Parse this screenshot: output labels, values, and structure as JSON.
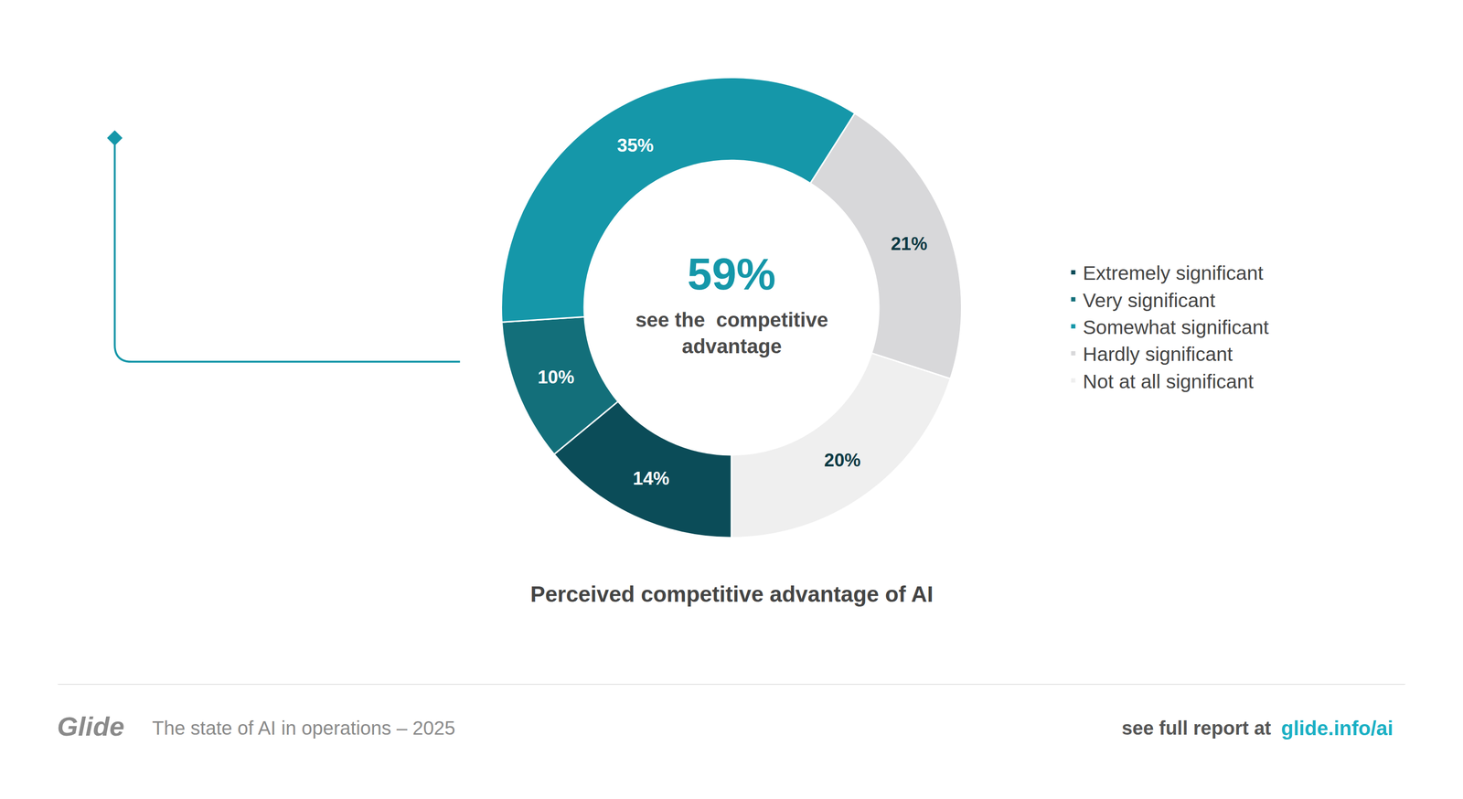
{
  "chart_data": {
    "type": "pie",
    "title": "Perceived competitive advantage of AI",
    "categories": [
      "Extremely significant",
      "Very significant",
      "Somewhat significant",
      "Hardly significant",
      "Not at all significant"
    ],
    "values": [
      14,
      10,
      35,
      21,
      20
    ],
    "value_labels": [
      "14%",
      "10%",
      "35%",
      "21%",
      "20%"
    ],
    "colors": [
      "#0b4c58",
      "#136f7a",
      "#1597a9",
      "#d8d8da",
      "#efefef"
    ],
    "data_labels": true,
    "legend": "right",
    "center": {
      "value_label": "59%",
      "text": [
        "see the  competitive",
        "advantage"
      ]
    },
    "source": {
      "brand": "Glide",
      "text": "The state of AI in operations – 2025",
      "link_text": "see full report at",
      "link": "glide.info/ai"
    }
  }
}
